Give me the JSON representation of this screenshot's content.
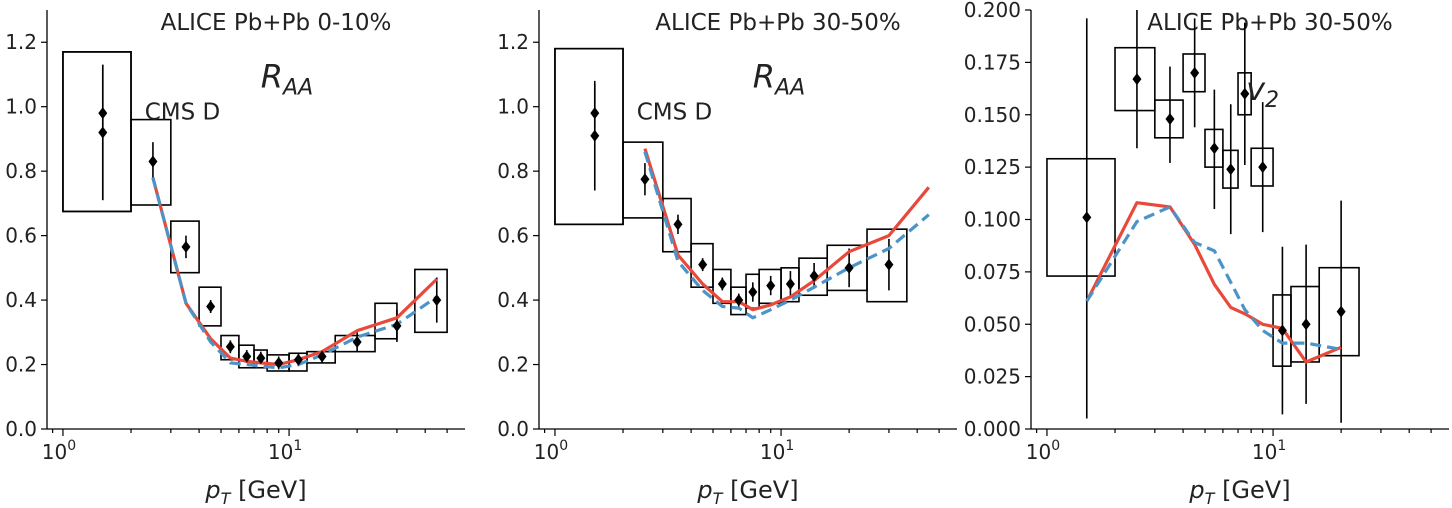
{
  "chart_data": [
    {
      "type": "scatter",
      "title": "ALICE Pb+Pb 0-10%",
      "xlabel": "p_T [GeV]",
      "ylabel": "",
      "xscale": "log",
      "xlim": [
        0.85,
        60
      ],
      "ylim": [
        0,
        1.3
      ],
      "x_ticks": [
        {
          "v": 1,
          "base": "10",
          "exp": "0"
        },
        {
          "v": 10,
          "base": "10",
          "exp": "1"
        }
      ],
      "y_ticks": [
        0.0,
        0.2,
        0.4,
        0.6,
        0.8,
        1.0,
        1.2
      ],
      "y_tick_decimals": 1,
      "annotations": [
        {
          "text": "CMS D",
          "style": "normal",
          "x": 2.3,
          "y": 0.96
        },
        {
          "text": "R",
          "sub": "AA",
          "style": "big",
          "x": 7.5,
          "y": 1.06
        }
      ],
      "series": [
        {
          "kind": "points",
          "x": [
            1.5,
            1.5,
            2.5,
            3.5,
            4.5,
            5.5,
            6.5,
            7.5,
            9.0,
            11.0,
            14.0,
            20.0,
            30.0,
            45.0
          ],
          "y": [
            0.98,
            0.92,
            0.83,
            0.565,
            0.38,
            0.255,
            0.225,
            0.22,
            0.205,
            0.215,
            0.225,
            0.27,
            0.32,
            0.4
          ],
          "yerr_low": [
            0.27,
            0.21,
            0.05,
            0.035,
            0.02,
            0.02,
            0.02,
            0.02,
            0.02,
            0.02,
            0.02,
            0.03,
            0.05,
            0.07
          ],
          "yerr_high": [
            0.15,
            0.21,
            0.06,
            0.035,
            0.02,
            0.02,
            0.02,
            0.02,
            0.02,
            0.02,
            0.02,
            0.03,
            0.05,
            0.07
          ],
          "sys_xlow": [
            1.0,
            1.0,
            2.0,
            3.0,
            4.0,
            5.0,
            6.0,
            7.0,
            8.0,
            10.0,
            12.0,
            16.0,
            24.0,
            36.0
          ],
          "sys_xhigh": [
            2.0,
            2.0,
            3.0,
            4.0,
            5.0,
            6.0,
            7.0,
            8.0,
            10.0,
            12.0,
            16.0,
            24.0,
            30.0,
            50.0
          ],
          "sys_ylow": [
            0.675,
            0.675,
            0.695,
            0.485,
            0.32,
            0.215,
            0.19,
            0.19,
            0.18,
            0.18,
            0.205,
            0.24,
            0.28,
            0.3
          ],
          "sys_yhigh": [
            1.17,
            1.17,
            0.96,
            0.645,
            0.44,
            0.29,
            0.26,
            0.245,
            0.23,
            0.235,
            0.24,
            0.29,
            0.39,
            0.495
          ]
        },
        {
          "kind": "line",
          "color": "#e8493a",
          "dash": "none",
          "x": [
            2.5,
            3.5,
            4.5,
            5.5,
            6.5,
            7.5,
            9.0,
            11.0,
            14.0,
            20.0,
            30.0,
            45.0
          ],
          "y": [
            0.78,
            0.39,
            0.28,
            0.22,
            0.21,
            0.205,
            0.2,
            0.215,
            0.24,
            0.305,
            0.345,
            0.465
          ]
        },
        {
          "kind": "line",
          "color": "#4c94c7",
          "dash": "11 6",
          "x": [
            2.5,
            3.5,
            4.5,
            5.5,
            6.5,
            7.5,
            9.0,
            11.0,
            14.0,
            20.0,
            30.0,
            45.0
          ],
          "y": [
            0.78,
            0.39,
            0.27,
            0.205,
            0.2,
            0.195,
            0.19,
            0.2,
            0.23,
            0.285,
            0.325,
            0.41
          ]
        }
      ]
    },
    {
      "type": "scatter",
      "title": "ALICE Pb+Pb 30-50%",
      "xlabel": "p_T [GeV]",
      "ylabel": "",
      "xscale": "log",
      "xlim": [
        0.85,
        60
      ],
      "ylim": [
        0,
        1.3
      ],
      "x_ticks": [
        {
          "v": 1,
          "base": "10",
          "exp": "0"
        },
        {
          "v": 10,
          "base": "10",
          "exp": "1"
        }
      ],
      "y_ticks": [
        0.0,
        0.2,
        0.4,
        0.6,
        0.8,
        1.0,
        1.2
      ],
      "y_tick_decimals": 1,
      "annotations": [
        {
          "text": "CMS D",
          "style": "normal",
          "x": 2.3,
          "y": 0.96
        },
        {
          "text": "R",
          "sub": "AA",
          "style": "big",
          "x": 7.5,
          "y": 1.06
        }
      ],
      "series": [
        {
          "kind": "points",
          "x": [
            1.5,
            1.5,
            2.5,
            3.5,
            4.5,
            5.5,
            6.5,
            7.5,
            9.0,
            11.0,
            14.0,
            20.0,
            30.0
          ],
          "y": [
            0.98,
            0.91,
            0.775,
            0.635,
            0.51,
            0.45,
            0.4,
            0.425,
            0.445,
            0.45,
            0.475,
            0.5,
            0.51
          ],
          "yerr_low": [
            0.06,
            0.17,
            0.05,
            0.03,
            0.02,
            0.02,
            0.02,
            0.03,
            0.03,
            0.04,
            0.04,
            0.06,
            0.08
          ],
          "yerr_high": [
            0.09,
            0.17,
            0.05,
            0.03,
            0.02,
            0.02,
            0.02,
            0.03,
            0.03,
            0.04,
            0.04,
            0.06,
            0.08
          ],
          "sys_xlow": [
            1.0,
            1.0,
            2.0,
            3.0,
            4.0,
            5.0,
            6.0,
            7.0,
            8.0,
            10.0,
            12.0,
            16.0,
            24.0
          ],
          "sys_xhigh": [
            2.0,
            2.0,
            3.0,
            4.0,
            5.0,
            6.0,
            7.0,
            8.0,
            10.0,
            12.0,
            16.0,
            24.0,
            36.0
          ],
          "sys_ylow": [
            0.635,
            0.635,
            0.655,
            0.55,
            0.44,
            0.39,
            0.355,
            0.375,
            0.39,
            0.395,
            0.415,
            0.43,
            0.395
          ],
          "sys_yhigh": [
            1.18,
            1.18,
            0.89,
            0.715,
            0.575,
            0.495,
            0.44,
            0.48,
            0.495,
            0.5,
            0.53,
            0.57,
            0.62
          ]
        },
        {
          "kind": "line",
          "color": "#e8493a",
          "dash": "none",
          "x": [
            2.5,
            3.5,
            4.5,
            5.5,
            6.5,
            7.5,
            9.0,
            11.0,
            14.0,
            20.0,
            30.0,
            45.0
          ],
          "y": [
            0.87,
            0.54,
            0.45,
            0.395,
            0.395,
            0.37,
            0.385,
            0.41,
            0.46,
            0.55,
            0.6,
            0.75
          ]
        },
        {
          "kind": "line",
          "color": "#4c94c7",
          "dash": "11 6",
          "x": [
            2.5,
            3.5,
            4.5,
            5.5,
            6.5,
            7.5,
            9.0,
            11.0,
            14.0,
            20.0,
            30.0,
            45.0
          ],
          "y": [
            0.86,
            0.52,
            0.43,
            0.38,
            0.375,
            0.345,
            0.37,
            0.4,
            0.44,
            0.5,
            0.56,
            0.665
          ]
        }
      ]
    },
    {
      "type": "scatter",
      "title": "ALICE Pb+Pb 30-50%",
      "xlabel": "p_T [GeV]",
      "ylabel": "",
      "xscale": "log",
      "xlim": [
        0.85,
        60
      ],
      "ylim": [
        0,
        0.2
      ],
      "x_ticks": [
        {
          "v": 1,
          "base": "10",
          "exp": "0"
        },
        {
          "v": 10,
          "base": "10",
          "exp": "1"
        }
      ],
      "y_ticks": [
        0.0,
        0.025,
        0.05,
        0.075,
        0.1,
        0.125,
        0.15,
        0.175,
        0.2
      ],
      "y_tick_decimals": 3,
      "annotations": [
        {
          "text": "v",
          "sub": "2",
          "style": "big",
          "x": 7.6,
          "y": 0.157
        }
      ],
      "series": [
        {
          "kind": "points",
          "x": [
            1.5,
            2.5,
            3.5,
            4.5,
            5.5,
            6.5,
            7.5,
            9.0,
            11.0,
            14.0,
            20.0
          ],
          "y": [
            0.101,
            0.167,
            0.148,
            0.17,
            0.134,
            0.124,
            0.16,
            0.125,
            0.047,
            0.05,
            0.056
          ],
          "yerr_low": [
            0.096,
            0.033,
            0.021,
            0.026,
            0.029,
            0.031,
            0.034,
            0.031,
            0.04,
            0.038,
            0.053
          ],
          "yerr_high": [
            0.095,
            0.033,
            0.025,
            0.026,
            0.028,
            0.031,
            0.034,
            0.031,
            0.04,
            0.038,
            0.053
          ],
          "sys_xlow": [
            1.0,
            2.0,
            3.0,
            4.0,
            5.0,
            6.0,
            7.0,
            8.0,
            10.0,
            12.0,
            16.0
          ],
          "sys_xhigh": [
            2.0,
            3.0,
            4.0,
            5.0,
            6.0,
            7.0,
            8.0,
            10.0,
            12.0,
            16.0,
            24.0
          ],
          "sys_ylow": [
            0.073,
            0.152,
            0.139,
            0.161,
            0.125,
            0.115,
            0.15,
            0.116,
            0.03,
            0.032,
            0.035
          ],
          "sys_yhigh": [
            0.129,
            0.182,
            0.157,
            0.179,
            0.143,
            0.133,
            0.17,
            0.134,
            0.064,
            0.068,
            0.077
          ]
        },
        {
          "kind": "line",
          "color": "#e8493a",
          "dash": "none",
          "x": [
            1.5,
            2.5,
            3.5,
            4.5,
            5.5,
            6.5,
            7.5,
            9.0,
            11.0,
            14.0,
            20.0
          ],
          "y": [
            0.061,
            0.108,
            0.106,
            0.088,
            0.069,
            0.058,
            0.055,
            0.05,
            0.048,
            0.032,
            0.039
          ]
        },
        {
          "kind": "line",
          "color": "#4c94c7",
          "dash": "11 6",
          "x": [
            1.5,
            2.5,
            3.5,
            4.5,
            5.5,
            6.5,
            7.5,
            9.0,
            11.0,
            14.0,
            20.0
          ],
          "y": [
            0.061,
            0.099,
            0.106,
            0.089,
            0.085,
            0.07,
            0.057,
            0.047,
            0.041,
            0.041,
            0.038
          ]
        }
      ]
    }
  ]
}
